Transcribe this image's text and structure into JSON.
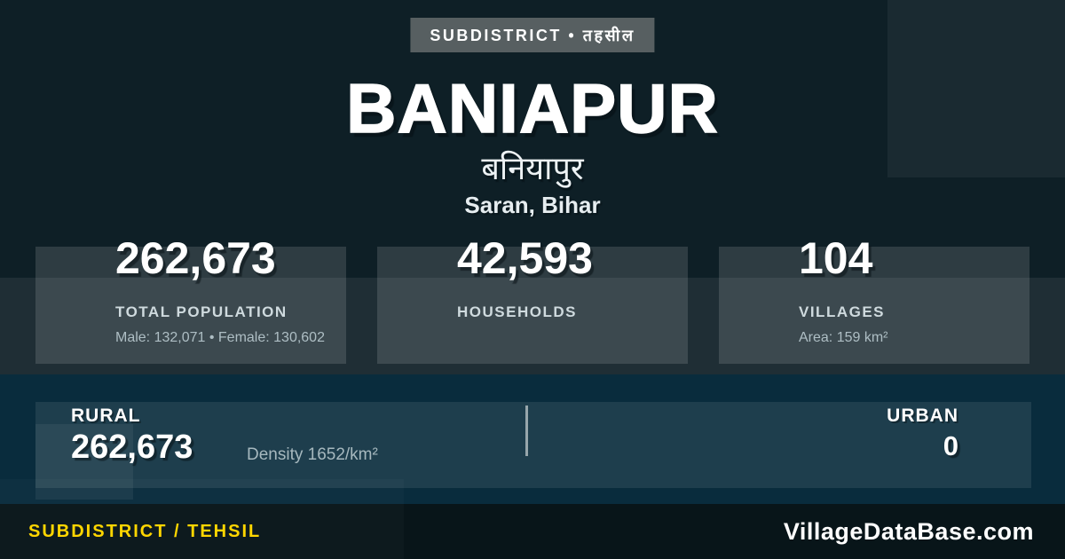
{
  "badge": {
    "label": "SUBDISTRICT • तहसील"
  },
  "header": {
    "title": "BANIAPUR",
    "title_local": "बनियापुर",
    "location": "Saran, Bihar"
  },
  "stats": [
    {
      "value": "262,673",
      "label": "TOTAL POPULATION",
      "detail": "Male: 132,071 • Female: 130,602"
    },
    {
      "value": "42,593",
      "label": "HOUSEHOLDS",
      "detail": ""
    },
    {
      "value": "104",
      "label": "VILLAGES",
      "detail": "Area: 159 km²"
    }
  ],
  "split": {
    "rural_label": "RURAL",
    "rural_value": "262,673",
    "density": "Density 1652/km²",
    "urban_label": "URBAN",
    "urban_value": "0"
  },
  "footer": {
    "left": "SUBDISTRICT / TEHSIL",
    "right": "VillageDataBase.com"
  },
  "colors": {
    "background": "#0E1F26",
    "panel_blue": "#092C3D",
    "footer_background": "#081519",
    "badge_background": "#575F61",
    "accent_yellow": "#FFD600",
    "text_primary": "#FFFFFF",
    "text_label": "#CFDADE",
    "text_muted": "#AEBEC4"
  }
}
